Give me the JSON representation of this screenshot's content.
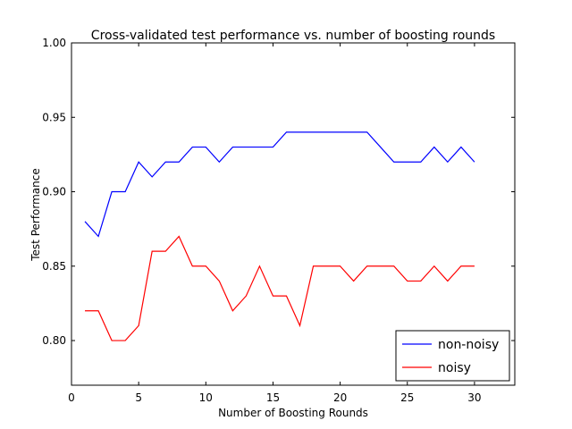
{
  "chart_data": {
    "type": "line",
    "title": "Cross-validated test performance vs. number of boosting rounds",
    "xlabel": "Number of Boosting Rounds",
    "ylabel": "Test Performance",
    "xlim": [
      0,
      33
    ],
    "ylim": [
      0.77,
      1.0
    ],
    "x_ticks": [
      0,
      5,
      10,
      15,
      20,
      25,
      30
    ],
    "y_ticks": [
      0.8,
      0.85,
      0.9,
      0.95,
      1.0
    ],
    "x_tick_labels": [
      "0",
      "5",
      "10",
      "15",
      "20",
      "25",
      "30"
    ],
    "y_tick_labels": [
      "0.80",
      "0.85",
      "0.90",
      "0.95",
      "1.00"
    ],
    "grid": false,
    "legend_position": "bottom-right",
    "x": [
      1,
      2,
      3,
      4,
      5,
      6,
      7,
      8,
      9,
      10,
      11,
      12,
      13,
      14,
      15,
      16,
      17,
      18,
      19,
      20,
      21,
      22,
      23,
      24,
      25,
      26,
      27,
      28,
      29,
      30
    ],
    "series": [
      {
        "name": "non-noisy",
        "color": "#0000ff",
        "values": [
          0.88,
          0.87,
          0.9,
          0.9,
          0.92,
          0.91,
          0.92,
          0.92,
          0.93,
          0.93,
          0.92,
          0.93,
          0.93,
          0.93,
          0.93,
          0.94,
          0.94,
          0.94,
          0.94,
          0.94,
          0.94,
          0.94,
          0.93,
          0.92,
          0.92,
          0.92,
          0.93,
          0.92,
          0.93,
          0.92
        ]
      },
      {
        "name": "noisy",
        "color": "#ff0000",
        "values": [
          0.82,
          0.82,
          0.8,
          0.8,
          0.81,
          0.86,
          0.86,
          0.87,
          0.85,
          0.85,
          0.84,
          0.82,
          0.83,
          0.85,
          0.83,
          0.83,
          0.81,
          0.85,
          0.85,
          0.85,
          0.84,
          0.85,
          0.85,
          0.85,
          0.84,
          0.84,
          0.85,
          0.84,
          0.85,
          0.85
        ]
      }
    ]
  }
}
